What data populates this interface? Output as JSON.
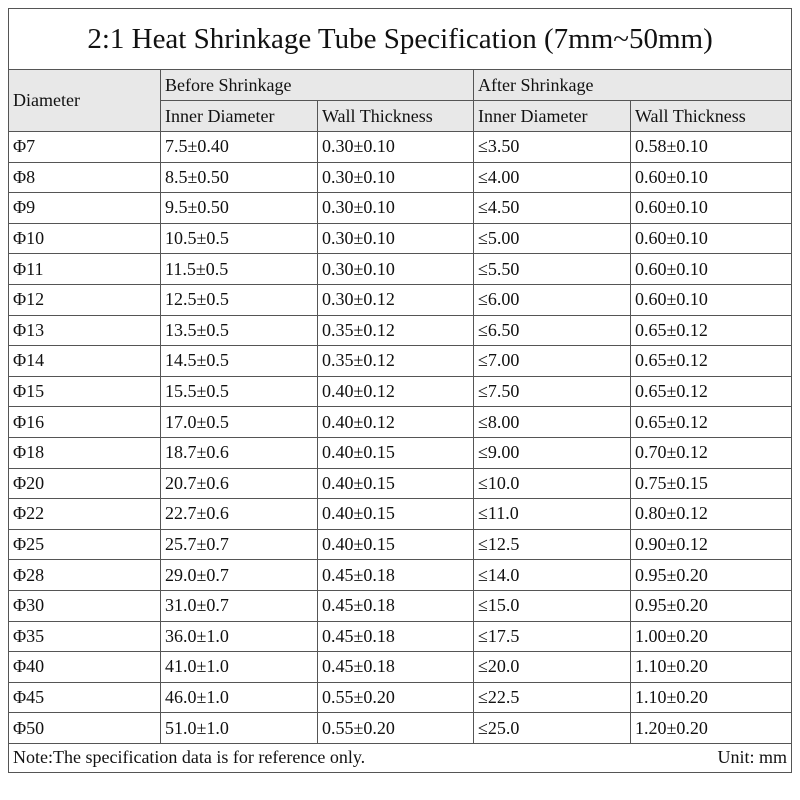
{
  "title": "2:1 Heat Shrinkage Tube Specification (7mm~50mm)",
  "header": {
    "diameter": "Diameter",
    "before": "Before Shrinkage",
    "after": "After Shrinkage",
    "columns": [
      "Inner Diameter",
      "Wall Thickness",
      "Inner Diameter",
      "Wall Thickness"
    ]
  },
  "rows": [
    [
      "Φ7",
      "7.5±0.40",
      "0.30±0.10",
      "≤3.50",
      "0.58±0.10"
    ],
    [
      "Φ8",
      "8.5±0.50",
      "0.30±0.10",
      "≤4.00",
      "0.60±0.10"
    ],
    [
      "Φ9",
      "9.5±0.50",
      "0.30±0.10",
      "≤4.50",
      "0.60±0.10"
    ],
    [
      "Φ10",
      "10.5±0.5",
      "0.30±0.10",
      "≤5.00",
      "0.60±0.10"
    ],
    [
      "Φ11",
      "11.5±0.5",
      "0.30±0.10",
      "≤5.50",
      "0.60±0.10"
    ],
    [
      "Φ12",
      "12.5±0.5",
      "0.30±0.12",
      "≤6.00",
      "0.60±0.10"
    ],
    [
      "Φ13",
      "13.5±0.5",
      "0.35±0.12",
      "≤6.50",
      "0.65±0.12"
    ],
    [
      "Φ14",
      "14.5±0.5",
      "0.35±0.12",
      "≤7.00",
      "0.65±0.12"
    ],
    [
      "Φ15",
      "15.5±0.5",
      "0.40±0.12",
      "≤7.50",
      "0.65±0.12"
    ],
    [
      "Φ16",
      "17.0±0.5",
      "0.40±0.12",
      "≤8.00",
      "0.65±0.12"
    ],
    [
      "Φ18",
      "18.7±0.6",
      "0.40±0.15",
      "≤9.00",
      "0.70±0.12"
    ],
    [
      "Φ20",
      "20.7±0.6",
      "0.40±0.15",
      "≤10.0",
      "0.75±0.15"
    ],
    [
      "Φ22",
      "22.7±0.6",
      "0.40±0.15",
      "≤11.0",
      "0.80±0.12"
    ],
    [
      "Φ25",
      "25.7±0.7",
      "0.40±0.15",
      "≤12.5",
      "0.90±0.12"
    ],
    [
      "Φ28",
      "29.0±0.7",
      "0.45±0.18",
      "≤14.0",
      "0.95±0.20"
    ],
    [
      "Φ30",
      "31.0±0.7",
      "0.45±0.18",
      "≤15.0",
      "0.95±0.20"
    ],
    [
      "Φ35",
      "36.0±1.0",
      "0.45±0.18",
      "≤17.5",
      "1.00±0.20"
    ],
    [
      "Φ40",
      "41.0±1.0",
      "0.45±0.18",
      "≤20.0",
      "1.10±0.20"
    ],
    [
      "Φ45",
      "46.0±1.0",
      "0.55±0.20",
      "≤22.5",
      "1.10±0.20"
    ],
    [
      "Φ50",
      "51.0±1.0",
      "0.55±0.20",
      "≤25.0",
      "1.20±0.20"
    ]
  ],
  "note": "Note:The specification data is for reference only.",
  "unit": "Unit: mm"
}
